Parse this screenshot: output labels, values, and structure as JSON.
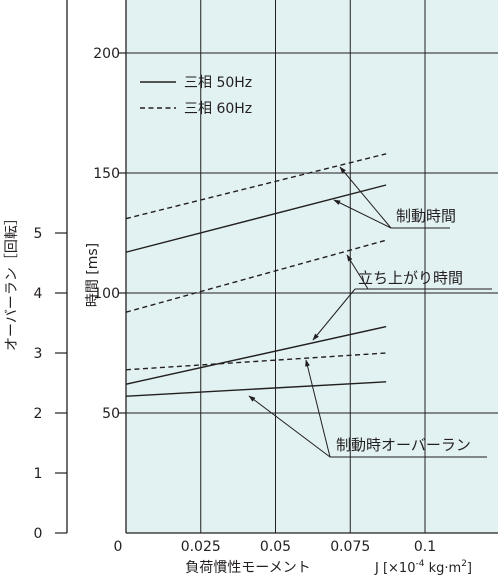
{
  "chart_data": {
    "type": "line",
    "x_axis": {
      "label": "負荷慣性モーメント",
      "unit_label": "J [×10",
      "unit_exp": "-4",
      "unit_mid": " kg·m",
      "unit_sup": "2",
      "unit_end": "]",
      "range": [
        0,
        0.125
      ],
      "ticks": [
        {
          "v": 0,
          "label": "0"
        },
        {
          "v": 0.025,
          "label": "0.025"
        },
        {
          "v": 0.05,
          "label": "0.05"
        },
        {
          "v": 0.075,
          "label": "0.075"
        },
        {
          "v": 0.1,
          "label": "0.1"
        }
      ]
    },
    "y_axis_time": {
      "label": "時間 [ms]",
      "range": [
        0,
        220
      ],
      "ticks": [
        {
          "v": 50,
          "label": "50"
        },
        {
          "v": 100,
          "label": "100"
        },
        {
          "v": 150,
          "label": "150"
        },
        {
          "v": 200,
          "label": "200"
        }
      ]
    },
    "y_axis_overrun": {
      "label": "オーバーラン［回転］",
      "range": [
        0,
        5.5
      ],
      "ticks": [
        {
          "v": 0,
          "label": "0"
        },
        {
          "v": 1,
          "label": "1"
        },
        {
          "v": 2,
          "label": "2"
        },
        {
          "v": 3,
          "label": "3"
        },
        {
          "v": 4,
          "label": "4"
        },
        {
          "v": 5,
          "label": "5"
        }
      ]
    },
    "legend": {
      "position": "top-left",
      "entries": [
        {
          "name": "三相 50Hz",
          "style": "solid"
        },
        {
          "name": "三相 60Hz",
          "style": "dashed"
        }
      ]
    },
    "series": [
      {
        "group": "braking_time",
        "style": "solid",
        "axis": "time",
        "x": [
          0,
          0.087
        ],
        "y": [
          117,
          145
        ]
      },
      {
        "group": "braking_time",
        "style": "dashed",
        "axis": "time",
        "x": [
          0,
          0.087
        ],
        "y": [
          131,
          158
        ]
      },
      {
        "group": "rise_time",
        "style": "solid",
        "axis": "time",
        "x": [
          0,
          0.087
        ],
        "y": [
          62,
          86
        ]
      },
      {
        "group": "rise_time",
        "style": "dashed",
        "axis": "time",
        "x": [
          0,
          0.087
        ],
        "y": [
          92,
          122
        ]
      },
      {
        "group": "overrun",
        "style": "solid",
        "axis": "overrun",
        "x": [
          0,
          0.087
        ],
        "y": [
          2.28,
          2.52
        ]
      },
      {
        "group": "overrun",
        "style": "dashed",
        "axis": "overrun",
        "x": [
          0,
          0.087
        ],
        "y": [
          2.72,
          3.0
        ]
      }
    ],
    "annotations": [
      {
        "label": "制動時間",
        "group": "braking_time"
      },
      {
        "label": "立ち上がり時間",
        "group": "rise_time"
      },
      {
        "label": "制動時オーバーラン",
        "group": "overrun"
      }
    ],
    "grid": true,
    "colors": {
      "plot_bg": "#e2f2f2",
      "line": "#231f20",
      "grid": "#231f20"
    }
  }
}
